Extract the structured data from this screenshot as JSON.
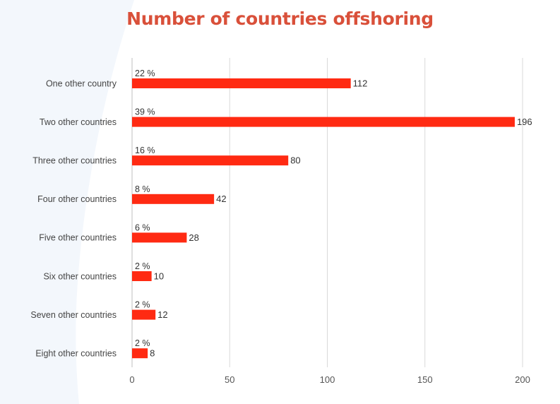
{
  "chart_data": {
    "type": "bar",
    "orientation": "horizontal",
    "title": "Number of countries offshoring",
    "categories": [
      "One other country",
      "Two other countries",
      "Three other countries",
      "Four other countries",
      "Five other countries",
      "Six other countries",
      "Seven other countries",
      "Eight other countries"
    ],
    "values": [
      112,
      196,
      80,
      42,
      28,
      10,
      12,
      8
    ],
    "percent_labels": [
      "22 %",
      "39 %",
      "16 %",
      "8 %",
      "6 %",
      "2 %",
      "2 %",
      "2 %"
    ],
    "xlim": [
      0,
      200
    ],
    "xticks": [
      0,
      50,
      100,
      150,
      200
    ],
    "grid": true,
    "legend": "none",
    "bar_color": "#ff2a12",
    "grid_color": "#d9d9d9",
    "title_color": "#d9503a",
    "background_accent": "#f3f7fc"
  }
}
